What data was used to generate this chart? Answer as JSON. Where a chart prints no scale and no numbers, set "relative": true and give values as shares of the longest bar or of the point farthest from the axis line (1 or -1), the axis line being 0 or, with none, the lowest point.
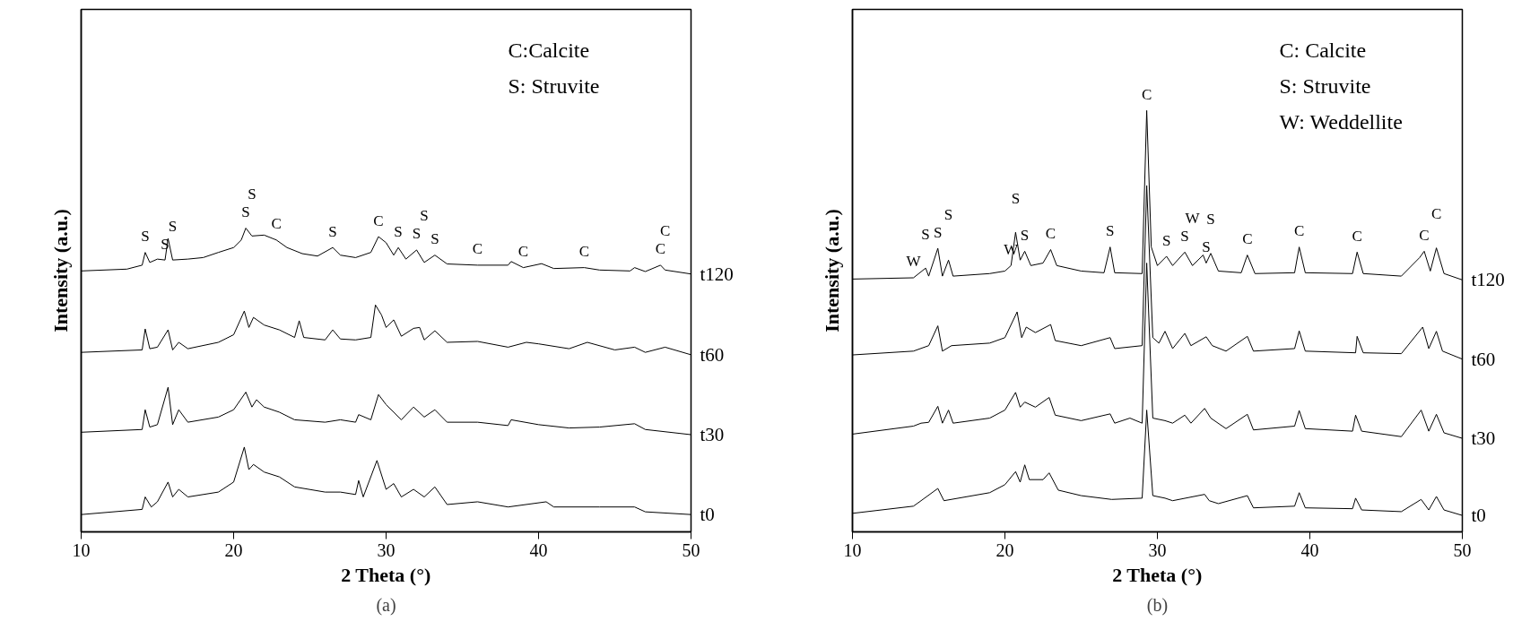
{
  "chart_data": [
    {
      "type": "line",
      "title": "(a)",
      "xlabel": "2 Theta (°)",
      "ylabel": "Intensity (a.u.)",
      "relative": true,
      "xlim": [
        10,
        50
      ],
      "xticks": [
        10,
        20,
        30,
        40,
        50
      ],
      "grid": false,
      "legend": false,
      "marker": "none",
      "line_style": "solid",
      "series": [
        {
          "name": "t120",
          "color": "#000000",
          "x": [
            10,
            13,
            14,
            14.2,
            14.5,
            15,
            15.5,
            15.7,
            16,
            17,
            18,
            19,
            20,
            20.5,
            20.8,
            21.2,
            22,
            22.8,
            23.5,
            24.5,
            25.5,
            26.5,
            27,
            28,
            29,
            29.5,
            30,
            30.5,
            30.8,
            31.3,
            32,
            32.5,
            33.2,
            34,
            36,
            38,
            38.2,
            39,
            40.2,
            41,
            43,
            44,
            46,
            46.3,
            47,
            48,
            48.3,
            50
          ],
          "values": [
            0.859,
            0.865,
            0.878,
            0.92,
            0.887,
            0.898,
            0.895,
            0.966,
            0.895,
            0.898,
            0.903,
            0.92,
            0.936,
            0.961,
            1,
            0.974,
            0.977,
            0.961,
            0.936,
            0.916,
            0.908,
            0.936,
            0.911,
            0.903,
            0.92,
            0.972,
            0.952,
            0.911,
            0.936,
            0.898,
            0.928,
            0.887,
            0.911,
            0.882,
            0.878,
            0.878,
            0.89,
            0.87,
            0.883,
            0.867,
            0.87,
            0.862,
            0.859,
            0.87,
            0.857,
            0.878,
            0.862,
            0.849
          ]
        },
        {
          "name": "t60",
          "color": "#000000",
          "x": [
            10,
            14,
            14.2,
            14.5,
            15,
            15.7,
            16,
            16.4,
            17,
            19,
            20,
            20.7,
            21,
            21.3,
            22,
            23,
            24,
            24.3,
            24.6,
            26,
            26.5,
            27,
            28,
            29,
            29.3,
            29.7,
            30,
            30.5,
            31,
            31.8,
            32.2,
            32.5,
            33.2,
            34,
            36,
            38,
            39.2,
            40,
            42,
            43.2,
            45,
            46.3,
            47,
            48.3,
            50
          ],
          "values": [
            0.591,
            0.599,
            0.668,
            0.603,
            0.608,
            0.665,
            0.599,
            0.624,
            0.603,
            0.624,
            0.649,
            0.727,
            0.673,
            0.706,
            0.681,
            0.665,
            0.64,
            0.695,
            0.64,
            0.632,
            0.665,
            0.635,
            0.632,
            0.64,
            0.747,
            0.714,
            0.673,
            0.698,
            0.644,
            0.67,
            0.673,
            0.632,
            0.662,
            0.624,
            0.627,
            0.608,
            0.624,
            0.619,
            0.603,
            0.624,
            0.599,
            0.608,
            0.591,
            0.608,
            0.583
          ]
        },
        {
          "name": "t30",
          "color": "#000000",
          "x": [
            10,
            14,
            14.2,
            14.5,
            15,
            15.7,
            16,
            16.4,
            17,
            19,
            20,
            20.8,
            21.2,
            21.5,
            22,
            23,
            24,
            26,
            27,
            28,
            28.2,
            29,
            29.5,
            30,
            30.5,
            31,
            31.8,
            32.5,
            33.2,
            34,
            36,
            38,
            38.2,
            40,
            42,
            44,
            46.3,
            47,
            50
          ],
          "values": [
            0.328,
            0.337,
            0.402,
            0.345,
            0.353,
            0.476,
            0.353,
            0.402,
            0.361,
            0.378,
            0.402,
            0.46,
            0.411,
            0.435,
            0.411,
            0.394,
            0.369,
            0.361,
            0.369,
            0.361,
            0.386,
            0.369,
            0.452,
            0.419,
            0.394,
            0.369,
            0.411,
            0.378,
            0.402,
            0.361,
            0.361,
            0.35,
            0.369,
            0.353,
            0.342,
            0.345,
            0.356,
            0.337,
            0.32
          ]
        },
        {
          "name": "t0",
          "color": "#000000",
          "x": [
            10,
            14,
            14.2,
            14.6,
            15,
            15.7,
            16,
            16.4,
            17,
            19,
            20,
            20.7,
            21,
            21.3,
            22,
            23,
            24,
            26,
            27,
            28,
            28.2,
            28.5,
            29.4,
            30,
            30.5,
            31,
            31.8,
            32.5,
            33.2,
            34,
            36,
            38,
            40.5,
            41,
            44,
            46.3,
            47,
            50
          ],
          "values": [
            0.057,
            0.074,
            0.115,
            0.082,
            0.099,
            0.164,
            0.115,
            0.14,
            0.115,
            0.131,
            0.164,
            0.279,
            0.205,
            0.222,
            0.197,
            0.181,
            0.148,
            0.131,
            0.131,
            0.123,
            0.169,
            0.115,
            0.235,
            0.14,
            0.159,
            0.115,
            0.14,
            0.115,
            0.148,
            0.09,
            0.099,
            0.082,
            0.099,
            0.082,
            0.082,
            0.082,
            0.066,
            0.057
          ]
        }
      ],
      "annotations": [
        "C:Calcite",
        "S: Struvite",
        {
          "text": "S",
          "x": 14.2,
          "y": 0.92
        },
        {
          "text": "S",
          "x": 15.5,
          "y": 0.895
        },
        {
          "text": "S",
          "x": 16,
          "y": 0.895
        },
        {
          "text": "S",
          "x": 20.8,
          "y": 1
        },
        {
          "text": "S",
          "x": 21.2,
          "y": 0.974
        },
        {
          "text": "C",
          "x": 22.8,
          "y": 0.961
        },
        {
          "text": "S",
          "x": 26.5,
          "y": 0.936
        },
        {
          "text": "C",
          "x": 29.5,
          "y": 0.972
        },
        {
          "text": "S",
          "x": 30.8,
          "y": 0.936
        },
        {
          "text": "S",
          "x": 32,
          "y": 0.928
        },
        {
          "text": "S",
          "x": 32.5,
          "y": 0.887
        },
        {
          "text": "S",
          "x": 33.2,
          "y": 0.911
        },
        {
          "text": "C",
          "x": 36,
          "y": 0.878
        },
        {
          "text": "C",
          "x": 39,
          "y": 0.87
        },
        {
          "text": "C",
          "x": 43,
          "y": 0.87
        },
        {
          "text": "C",
          "x": 48,
          "y": 0.878
        },
        {
          "text": "C",
          "x": 48.3,
          "y": 0.862
        }
      ]
    },
    {
      "type": "line",
      "title": "(b)",
      "xlabel": "2 Theta (°)",
      "ylabel": "Intensity (a.u.)",
      "relative": true,
      "xlim": [
        10,
        50
      ],
      "xticks": [
        10,
        20,
        30,
        40,
        50
      ],
      "grid": false,
      "legend": false,
      "marker": "none",
      "line_style": "solid",
      "series": [
        {
          "name": "t120",
          "color": "#000000",
          "x": [
            10,
            14,
            14.8,
            15,
            15.6,
            15.9,
            16.3,
            16.6,
            19,
            20,
            20.4,
            20.7,
            21,
            21.3,
            21.7,
            22.5,
            23,
            23.4,
            25,
            26.5,
            26.9,
            27.2,
            29,
            29.3,
            29.6,
            30,
            30.6,
            31,
            31.8,
            32.3,
            33,
            33.2,
            33.5,
            34,
            35.5,
            35.9,
            36.4,
            39,
            39.3,
            39.7,
            42.8,
            43.1,
            43.5,
            46,
            47.2,
            47.5,
            47.9,
            48.3,
            48.8,
            50
          ],
          "values": [
            0.6,
            0.603,
            0.626,
            0.607,
            0.673,
            0.607,
            0.645,
            0.607,
            0.613,
            0.619,
            0.632,
            0.711,
            0.645,
            0.666,
            0.632,
            0.638,
            0.67,
            0.632,
            0.619,
            0.615,
            0.676,
            0.615,
            0.613,
            1,
            0.676,
            0.632,
            0.654,
            0.632,
            0.664,
            0.632,
            0.657,
            0.638,
            0.661,
            0.619,
            0.615,
            0.657,
            0.613,
            0.615,
            0.676,
            0.615,
            0.613,
            0.664,
            0.613,
            0.607,
            0.651,
            0.666,
            0.619,
            0.674,
            0.613,
            0.598
          ]
        },
        {
          "name": "t60",
          "color": "#000000",
          "x": [
            10,
            14,
            15,
            15.6,
            15.9,
            16.5,
            19,
            20,
            20.8,
            21.1,
            21.4,
            22,
            23,
            23.3,
            25,
            26.9,
            27.2,
            29,
            29.3,
            29.7,
            30.1,
            30.5,
            31,
            31.8,
            32.2,
            33.2,
            33.6,
            34.5,
            35.9,
            36.3,
            39,
            39.3,
            39.7,
            43,
            43.1,
            43.5,
            46,
            47.4,
            47.8,
            48.3,
            48.7,
            50
          ],
          "values": [
            0.42,
            0.429,
            0.442,
            0.489,
            0.429,
            0.442,
            0.448,
            0.461,
            0.522,
            0.461,
            0.486,
            0.473,
            0.492,
            0.454,
            0.442,
            0.461,
            0.435,
            0.442,
            0.822,
            0.461,
            0.448,
            0.476,
            0.435,
            0.471,
            0.442,
            0.463,
            0.442,
            0.429,
            0.464,
            0.429,
            0.435,
            0.477,
            0.429,
            0.425,
            0.464,
            0.425,
            0.423,
            0.486,
            0.435,
            0.476,
            0.429,
            0.41
          ]
        },
        {
          "name": "t30",
          "color": "#000000",
          "x": [
            10,
            14,
            14.5,
            15,
            15.6,
            15.9,
            16.3,
            16.6,
            19,
            20,
            20.7,
            21,
            21.3,
            22,
            22.9,
            23.3,
            25,
            26.9,
            27.2,
            28.2,
            29,
            29.3,
            29.7,
            30.5,
            31,
            31.8,
            32.2,
            33.1,
            33.5,
            34.5,
            35.9,
            36.3,
            39,
            39.3,
            39.7,
            42.8,
            43,
            43.4,
            46,
            47.3,
            47.8,
            48.3,
            48.8,
            50
          ],
          "values": [
            0.232,
            0.251,
            0.258,
            0.26,
            0.298,
            0.258,
            0.289,
            0.258,
            0.27,
            0.289,
            0.331,
            0.296,
            0.308,
            0.296,
            0.319,
            0.277,
            0.264,
            0.28,
            0.258,
            0.27,
            0.258,
            0.638,
            0.27,
            0.264,
            0.258,
            0.277,
            0.258,
            0.293,
            0.27,
            0.245,
            0.279,
            0.242,
            0.251,
            0.288,
            0.245,
            0.239,
            0.277,
            0.239,
            0.226,
            0.289,
            0.239,
            0.279,
            0.235,
            0.222
          ]
        },
        {
          "name": "t0",
          "color": "#000000",
          "x": [
            10,
            14,
            14.5,
            15.6,
            16,
            19,
            20,
            20.7,
            21,
            21.3,
            21.6,
            22.5,
            22.9,
            23.5,
            25,
            27,
            29,
            29.3,
            29.7,
            30.5,
            31,
            33.1,
            33.4,
            34,
            35.9,
            36.3,
            39,
            39.3,
            39.7,
            42.8,
            43,
            43.4,
            46,
            47.3,
            47.8,
            48.3,
            48.8,
            50
          ],
          "values": [
            0.044,
            0.061,
            0.074,
            0.103,
            0.074,
            0.093,
            0.112,
            0.143,
            0.118,
            0.159,
            0.124,
            0.124,
            0.14,
            0.099,
            0.086,
            0.077,
            0.08,
            0.289,
            0.086,
            0.08,
            0.074,
            0.089,
            0.074,
            0.067,
            0.086,
            0.057,
            0.061,
            0.093,
            0.057,
            0.055,
            0.08,
            0.052,
            0.048,
            0.077,
            0.052,
            0.084,
            0.052,
            0.039
          ]
        }
      ],
      "annotations": [
        "C: Calcite",
        "S: Struvite",
        "W: Weddellite",
        {
          "text": "W",
          "x": 14,
          "y": 0.603
        },
        {
          "text": "S",
          "x": 14.8,
          "y": 0.626
        },
        {
          "text": "S",
          "x": 15.6,
          "y": 0.673
        },
        {
          "text": "S",
          "x": 16.3,
          "y": 0.645
        },
        {
          "text": "W",
          "x": 20.4,
          "y": 0.632
        },
        {
          "text": "S",
          "x": 20.7,
          "y": 0.711
        },
        {
          "text": "S",
          "x": 21.3,
          "y": 0.666
        },
        {
          "text": "C",
          "x": 23,
          "y": 0.67
        },
        {
          "text": "S",
          "x": 26.9,
          "y": 0.676
        },
        {
          "text": "C",
          "x": 29.3,
          "y": 1
        },
        {
          "text": "S",
          "x": 30.6,
          "y": 0.654
        },
        {
          "text": "S",
          "x": 31.8,
          "y": 0.664
        },
        {
          "text": "W",
          "x": 32.3,
          "y": 0.632
        },
        {
          "text": "S",
          "x": 33.2,
          "y": 0.638
        },
        {
          "text": "S",
          "x": 33.5,
          "y": 0.661
        },
        {
          "text": "C",
          "x": 35.9,
          "y": 0.657
        },
        {
          "text": "C",
          "x": 39.3,
          "y": 0.676
        },
        {
          "text": "C",
          "x": 43.1,
          "y": 0.664
        },
        {
          "text": "C",
          "x": 47.5,
          "y": 0.666
        },
        {
          "text": "C",
          "x": 48.3,
          "y": 0.674
        }
      ]
    }
  ]
}
